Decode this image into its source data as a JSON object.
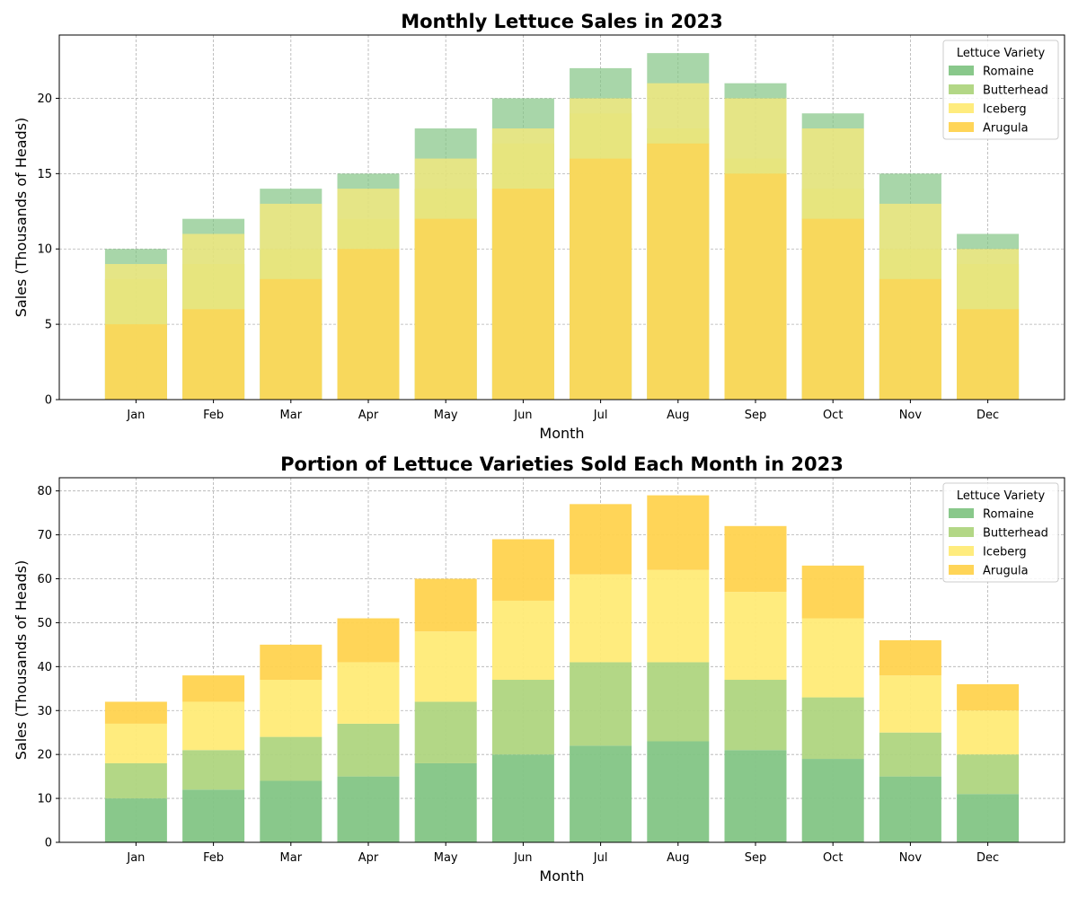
{
  "chart_data": [
    {
      "type": "bar",
      "mode": "overlaid",
      "title": "Monthly Lettuce Sales in 2023",
      "xlabel": "Month",
      "ylabel": "Sales (Thousands of Heads)",
      "ylim": [
        0,
        24.2
      ],
      "yticks": [
        0,
        5,
        10,
        15,
        20
      ],
      "grid": true,
      "legend_title": "Lettuce Variety",
      "legend_position": "top-right",
      "categories": [
        "Jan",
        "Feb",
        "Mar",
        "Apr",
        "May",
        "Jun",
        "Jul",
        "Aug",
        "Sep",
        "Oct",
        "Nov",
        "Dec"
      ],
      "series": [
        {
          "name": "Romaine",
          "color": "#83c585",
          "values": [
            10,
            12,
            14,
            15,
            18,
            20,
            22,
            23,
            21,
            19,
            15,
            11
          ]
        },
        {
          "name": "Butterhead",
          "color": "#afd580",
          "values": [
            8,
            9,
            10,
            12,
            14,
            17,
            19,
            18,
            16,
            14,
            10,
            9
          ]
        },
        {
          "name": "Iceberg",
          "color": "#ffeb77",
          "values": [
            9,
            11,
            13,
            14,
            16,
            18,
            20,
            21,
            20,
            18,
            13,
            10
          ]
        },
        {
          "name": "Arugula",
          "color": "#ffd34f",
          "values": [
            5,
            6,
            8,
            10,
            12,
            14,
            16,
            17,
            15,
            12,
            8,
            6
          ]
        }
      ]
    },
    {
      "type": "bar",
      "mode": "stacked",
      "title": "Portion of Lettuce Varieties Sold Each Month in 2023",
      "xlabel": "Month",
      "ylabel": "Sales (Thousands of Heads)",
      "ylim": [
        0,
        83
      ],
      "yticks": [
        0,
        10,
        20,
        30,
        40,
        50,
        60,
        70,
        80
      ],
      "grid": true,
      "legend_title": "Lettuce Variety",
      "legend_position": "top-right",
      "categories": [
        "Jan",
        "Feb",
        "Mar",
        "Apr",
        "May",
        "Jun",
        "Jul",
        "Aug",
        "Sep",
        "Oct",
        "Nov",
        "Dec"
      ],
      "series": [
        {
          "name": "Romaine",
          "color": "#83c585",
          "values": [
            10,
            12,
            14,
            15,
            18,
            20,
            22,
            23,
            21,
            19,
            15,
            11
          ]
        },
        {
          "name": "Butterhead",
          "color": "#afd580",
          "values": [
            8,
            9,
            10,
            12,
            14,
            17,
            19,
            18,
            16,
            14,
            10,
            9
          ]
        },
        {
          "name": "Iceberg",
          "color": "#ffeb77",
          "values": [
            9,
            11,
            13,
            14,
            16,
            18,
            20,
            21,
            20,
            18,
            13,
            10
          ]
        },
        {
          "name": "Arugula",
          "color": "#ffd34f",
          "values": [
            5,
            6,
            8,
            10,
            12,
            14,
            16,
            17,
            15,
            12,
            8,
            6
          ]
        }
      ]
    }
  ]
}
